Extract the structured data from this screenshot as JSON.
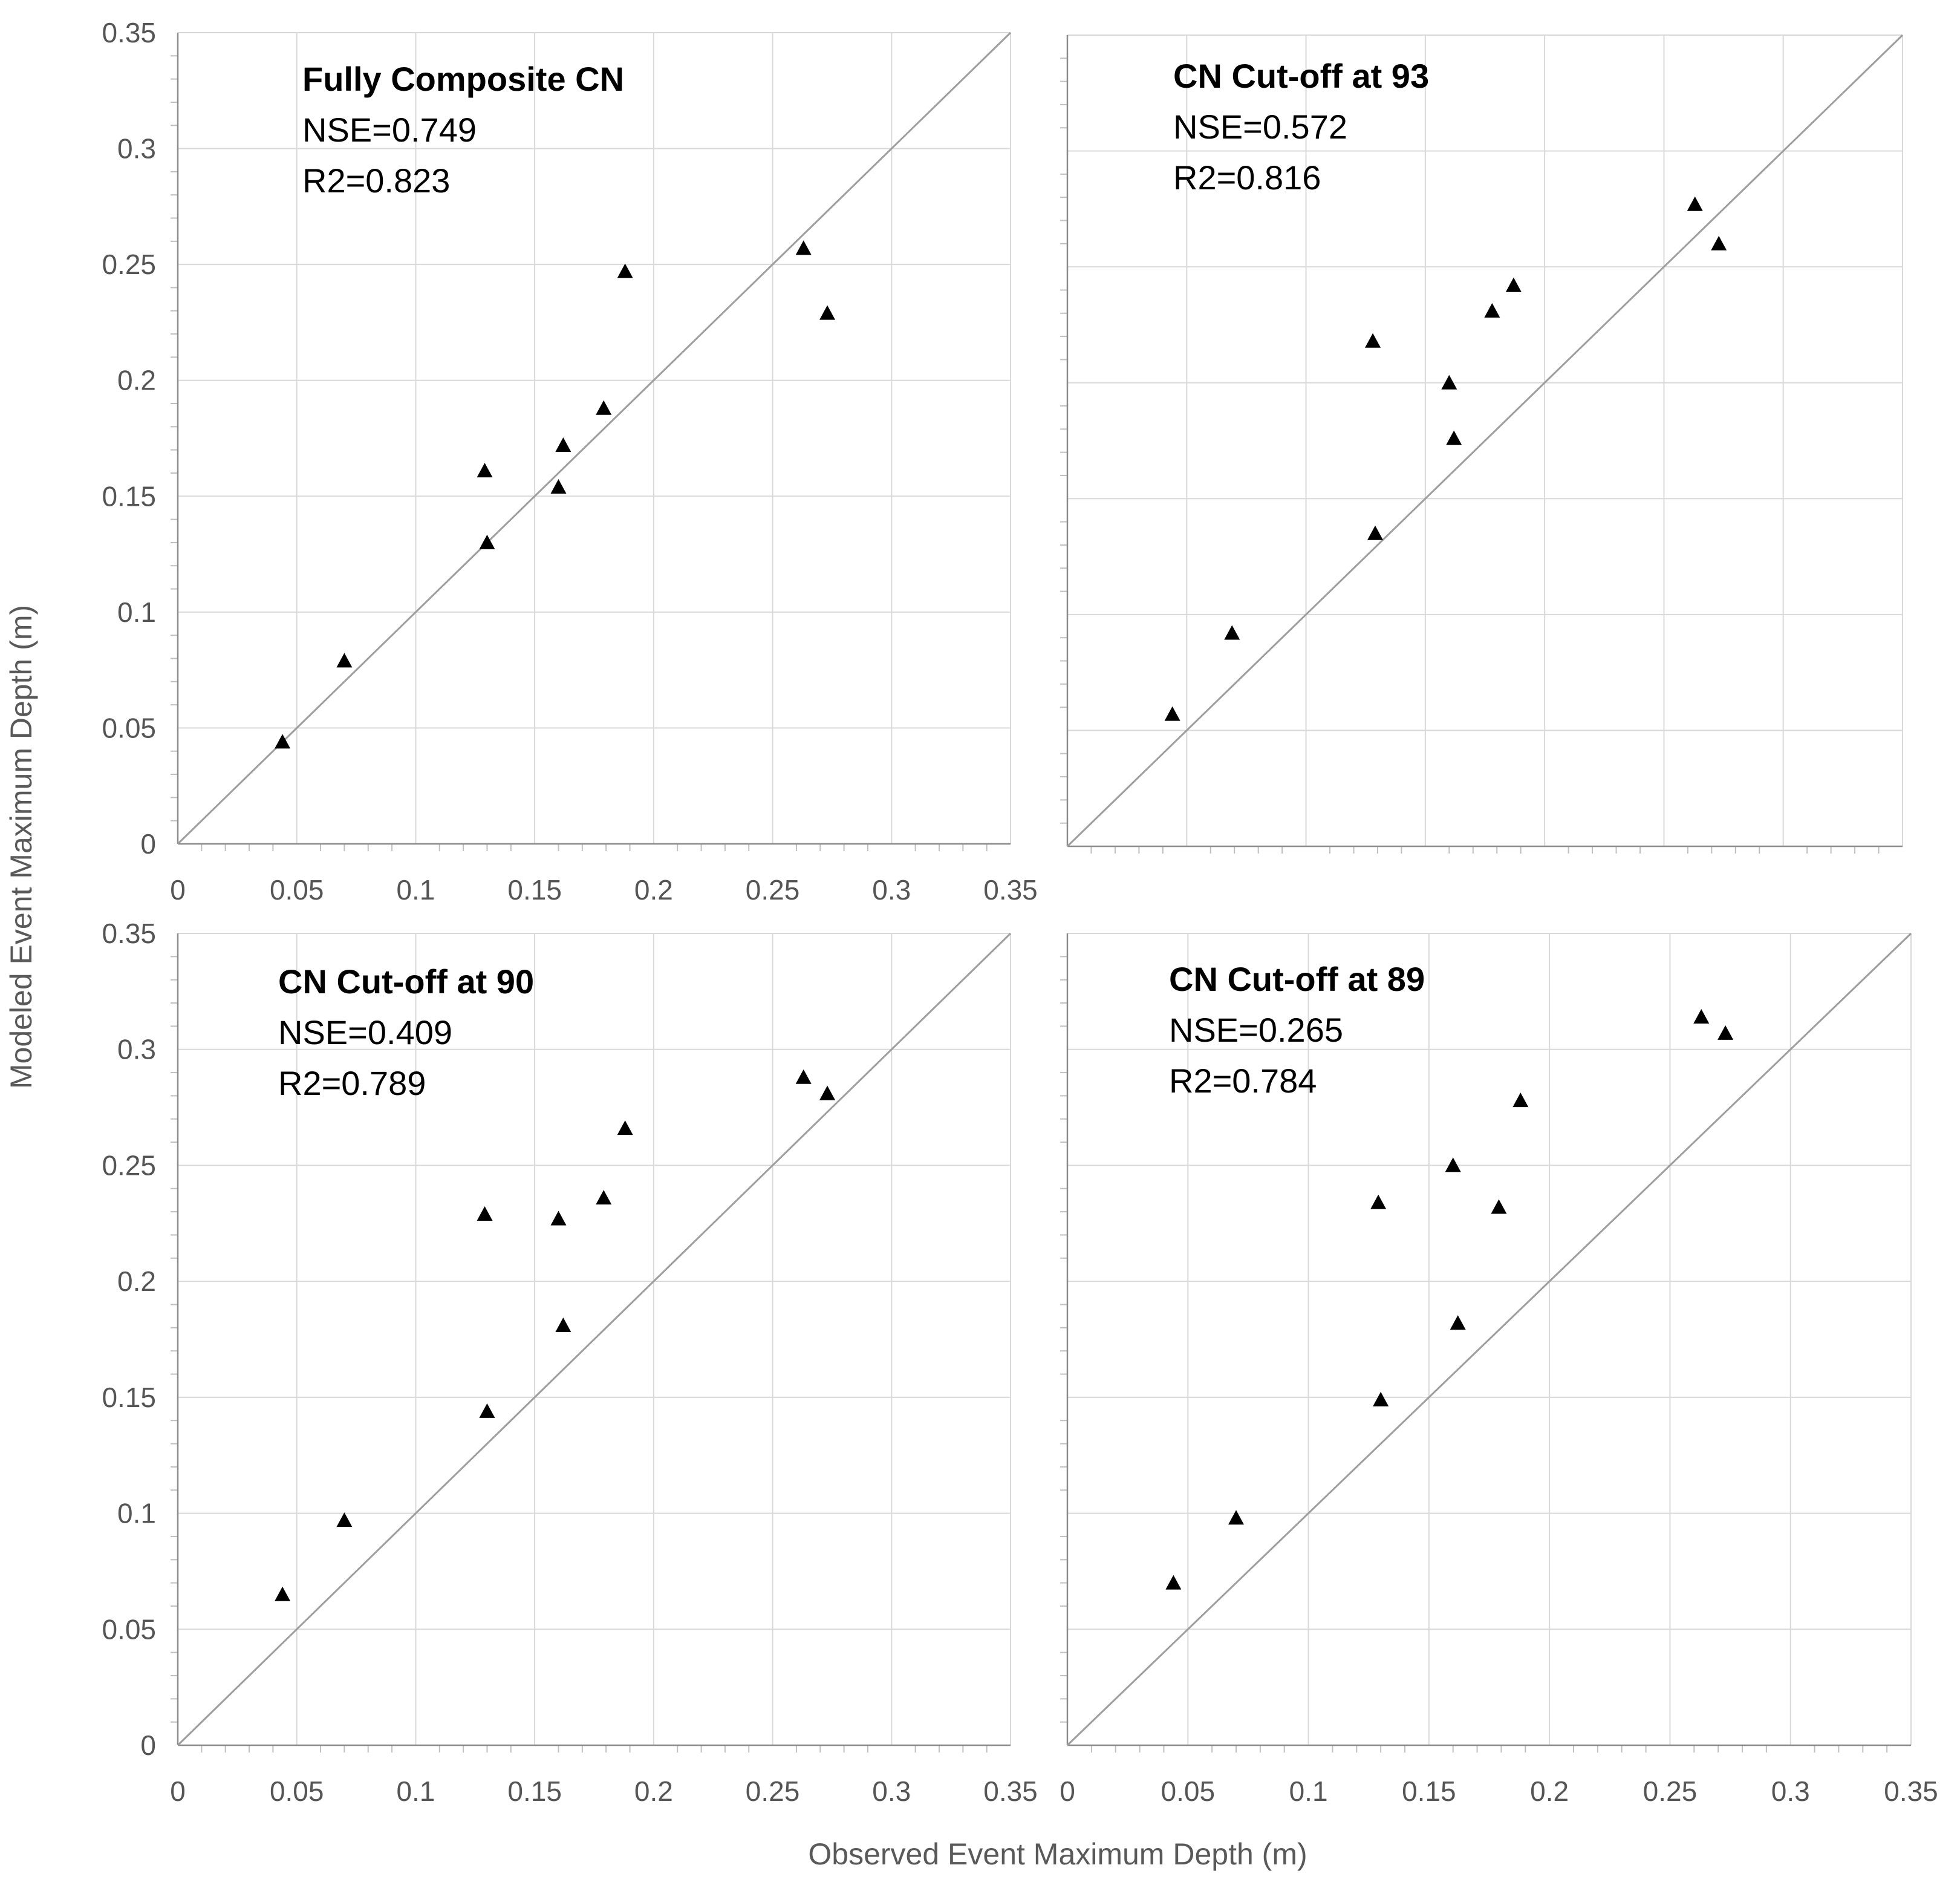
{
  "figure": {
    "xlabel": "Observed Event Maximum Depth (m)",
    "ylabel": "Modeled Event Maximum Depth (m)"
  },
  "chart_data": [
    {
      "type": "scatter",
      "title": "Fully Composite CN",
      "nse": "NSE=0.749",
      "r2": "R2=0.823",
      "xlim": [
        0,
        0.35
      ],
      "ylim": [
        0,
        0.35
      ],
      "xticks": [
        "0",
        "0.05",
        "0.1",
        "0.15",
        "0.2",
        "0.25",
        "0.3",
        "0.35"
      ],
      "yticks": [
        "0",
        "0.05",
        "0.1",
        "0.15",
        "0.2",
        "0.25",
        "0.3",
        "0.35"
      ],
      "reference_line": "1:1",
      "x": [
        0.044,
        0.07,
        0.129,
        0.13,
        0.16,
        0.162,
        0.179,
        0.188,
        0.263,
        0.273
      ],
      "y": [
        0.044,
        0.079,
        0.161,
        0.13,
        0.154,
        0.172,
        0.188,
        0.247,
        0.257,
        0.229
      ]
    },
    {
      "type": "scatter",
      "title": "CN Cut-off at 93",
      "nse": "NSE=0.572",
      "r2": "R2=0.816",
      "xlim": [
        0,
        0.35
      ],
      "ylim": [
        0,
        0.35
      ],
      "reference_line": "1:1",
      "x": [
        0.044,
        0.069,
        0.128,
        0.129,
        0.16,
        0.162,
        0.178,
        0.187,
        0.263,
        0.273
      ],
      "y": [
        0.057,
        0.092,
        0.218,
        0.135,
        0.2,
        0.176,
        0.231,
        0.242,
        0.277,
        0.26
      ]
    },
    {
      "type": "scatter",
      "title": "CN Cut-off at 90",
      "nse": "NSE=0.409",
      "r2": "R2=0.789",
      "xlim": [
        0,
        0.35
      ],
      "ylim": [
        0,
        0.35
      ],
      "xticks": [
        "0",
        "0.05",
        "0.1",
        "0.15",
        "0.2",
        "0.25",
        "0.3",
        "0.35"
      ],
      "yticks": [
        "0",
        "0.05",
        "0.1",
        "0.15",
        "0.2",
        "0.25",
        "0.3",
        "0.35"
      ],
      "reference_line": "1:1",
      "x": [
        0.044,
        0.07,
        0.129,
        0.13,
        0.16,
        0.162,
        0.179,
        0.188,
        0.263,
        0.273
      ],
      "y": [
        0.065,
        0.097,
        0.229,
        0.144,
        0.227,
        0.181,
        0.236,
        0.266,
        0.288,
        0.281
      ]
    },
    {
      "type": "scatter",
      "title": "CN Cut-off at 89",
      "nse": "NSE=0.265",
      "r2": "R2=0.784",
      "xlim": [
        0,
        0.35
      ],
      "ylim": [
        0,
        0.35
      ],
      "xticks": [
        "0",
        "0.05",
        "0.1",
        "0.15",
        "0.2",
        "0.25",
        "0.3",
        "0.35"
      ],
      "reference_line": "1:1",
      "x": [
        0.044,
        0.07,
        0.129,
        0.13,
        0.16,
        0.162,
        0.179,
        0.188,
        0.263,
        0.273
      ],
      "y": [
        0.07,
        0.098,
        0.234,
        0.149,
        0.25,
        0.182,
        0.232,
        0.278,
        0.314,
        0.307
      ]
    }
  ]
}
